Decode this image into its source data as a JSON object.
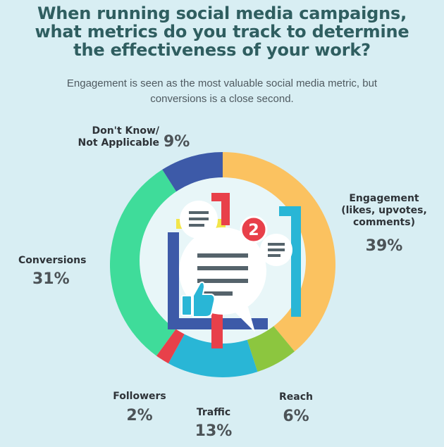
{
  "title_lines": [
    "When running social media campaigns,",
    "what metrics do you track to determine",
    "the effectiveness of your work?"
  ],
  "subtitle_lines": [
    "Engagement is seen as the most valuable social media metric, but",
    "conversions is a close second."
  ],
  "chart_data": {
    "type": "pie",
    "categories": [
      "Engagement (likes, upvotes, comments)",
      "Reach",
      "Traffic",
      "Followers",
      "Conversions",
      "Don't Know/ Not Applicable"
    ],
    "values": [
      39,
      6,
      13,
      2,
      31,
      9
    ],
    "unit": "%",
    "labels": {
      "engagement": {
        "lines": [
          "Engagement",
          "(likes, upvotes,",
          "comments)"
        ],
        "value": "39%"
      },
      "reach": {
        "lines": [
          "Reach"
        ],
        "value": "6%"
      },
      "traffic": {
        "lines": [
          "Traffic"
        ],
        "value": "13%"
      },
      "followers": {
        "lines": [
          "Followers"
        ],
        "value": "2%"
      },
      "conversions": {
        "lines": [
          "Conversions"
        ],
        "value": "31%"
      },
      "dont_know": {
        "lines": [
          "Don't Know/",
          "Not Applicable"
        ],
        "value": "9%"
      }
    },
    "colors": [
      "#fbc260",
      "#8cc63f",
      "#29b6d6",
      "#e8404a",
      "#3fdc9a",
      "#3d5aa8"
    ]
  },
  "center_badge": "2",
  "icons": [
    "chat-bubble-icon",
    "thumbs-up-icon",
    "notification-badge-icon"
  ],
  "palette": {
    "background": "#d8eef3",
    "title": "#2f5e60",
    "badge": "#e8404a"
  }
}
